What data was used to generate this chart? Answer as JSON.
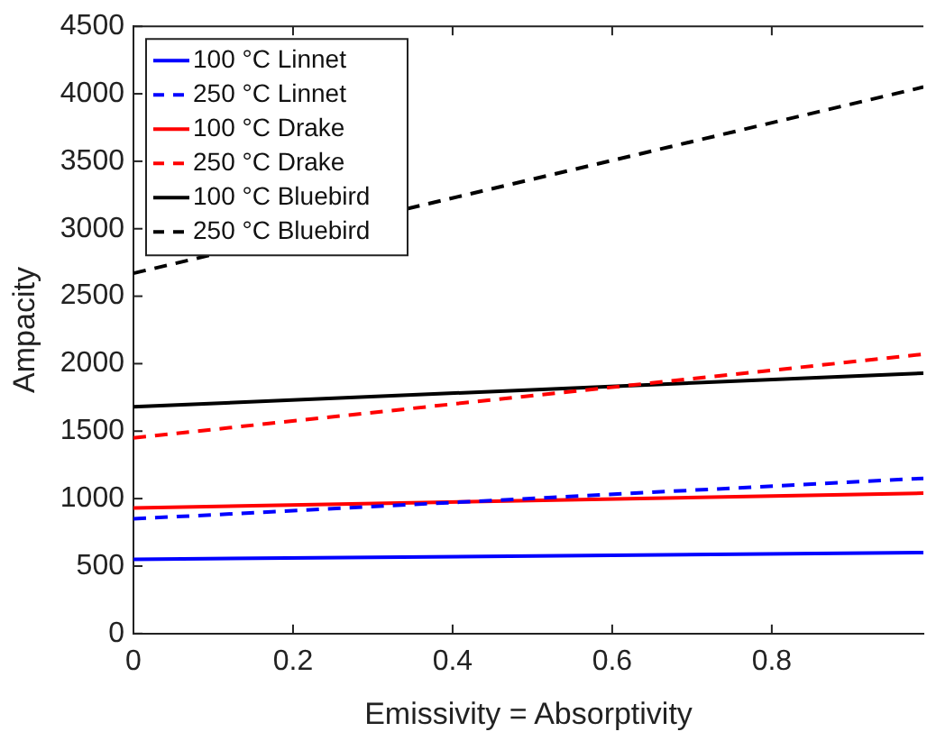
{
  "chart_data": {
    "type": "line",
    "xlabel": "Emissivity = Absorptivity",
    "ylabel": "Ampacity",
    "x": [
      0,
      0.99
    ],
    "series": [
      {
        "name": "100 °C Linnet",
        "color": "#0000ff",
        "values": [
          550,
          600
        ],
        "line_style": "solid"
      },
      {
        "name": "250 °C Linnet",
        "color": "#0000ff",
        "values": [
          850,
          1150
        ],
        "line_style": "dashed"
      },
      {
        "name": "100 °C Drake",
        "color": "#ff0000",
        "values": [
          930,
          1040
        ],
        "line_style": "solid"
      },
      {
        "name": "250 °C Drake",
        "color": "#ff0000",
        "values": [
          1450,
          2070
        ],
        "line_style": "dashed"
      },
      {
        "name": "100 °C Bluebird",
        "color": "#000000",
        "values": [
          1680,
          1930
        ],
        "line_style": "solid"
      },
      {
        "name": "250 °C Bluebird",
        "color": "#000000",
        "values": [
          2670,
          4050
        ],
        "line_style": "dashed"
      }
    ],
    "xlim": [
      0,
      0.99
    ],
    "xticks": [
      0,
      0.2,
      0.4,
      0.6,
      0.8
    ],
    "ylim": [
      0,
      4500
    ],
    "yticks": [
      0,
      500,
      1000,
      1500,
      2000,
      2500,
      3000,
      3500,
      4000,
      4500
    ],
    "grid": false,
    "legend": "top left",
    "marker": "none"
  }
}
